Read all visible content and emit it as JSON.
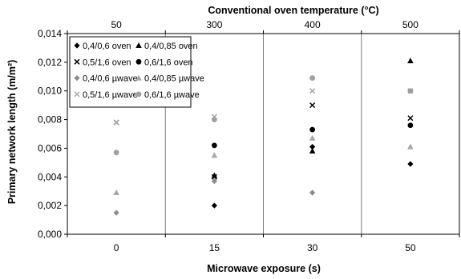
{
  "chart_data": {
    "type": "scatter",
    "title": "",
    "xlabel": "Microwave exposure (s)",
    "x2label": "Conventional oven temperature (°C)",
    "ylabel": "Primary network length (m/m²)",
    "x_categories": [
      "0",
      "15",
      "30",
      "50"
    ],
    "x2_categories": [
      "50",
      "300",
      "400",
      "500"
    ],
    "ylim": [
      0,
      0.014
    ],
    "yticks": [
      "0,000",
      "0,002",
      "0,004",
      "0,006",
      "0,008",
      "0,010",
      "0,012",
      "0,014"
    ],
    "grid": "vertical",
    "legend_position": "top-left",
    "series": [
      {
        "name": "0,4/0,6 oven",
        "marker": "diamond",
        "color": "#000000",
        "values": [
          null,
          0.002,
          0.0061,
          0.0049
        ]
      },
      {
        "name": "0,4/0,85 oven",
        "marker": "triangle",
        "color": "#000000",
        "values": [
          null,
          0.0041,
          0.0058,
          0.0121
        ]
      },
      {
        "name": "0,5/1,6 oven",
        "marker": "cross",
        "color": "#000000",
        "values": [
          0.0078,
          0.004,
          0.009,
          0.0081
        ]
      },
      {
        "name": "0,6/1,6 oven",
        "marker": "circle",
        "color": "#000000",
        "values": [
          null,
          0.0062,
          0.0073,
          0.0076
        ]
      },
      {
        "name": "0,4/0,6 µwave",
        "marker": "diamond",
        "color": "#8c8c8c",
        "values": [
          0.0015,
          0.0037,
          0.0029,
          null
        ]
      },
      {
        "name": "0,4/0,85 µwave",
        "marker": "triangle",
        "color": "#a6a6a6",
        "values": [
          0.0029,
          0.0055,
          0.0067,
          0.0061
        ]
      },
      {
        "name": "0,5/1,6 µwave",
        "marker": "cross",
        "color": "#a6a6a6",
        "values": [
          0.0078,
          0.0082,
          0.01,
          0.01
        ]
      },
      {
        "name": "0,6/1,6 µwave",
        "marker": "circle",
        "color": "#a0a0a0",
        "values": [
          0.0057,
          0.008,
          0.0109,
          0.01
        ]
      }
    ]
  }
}
